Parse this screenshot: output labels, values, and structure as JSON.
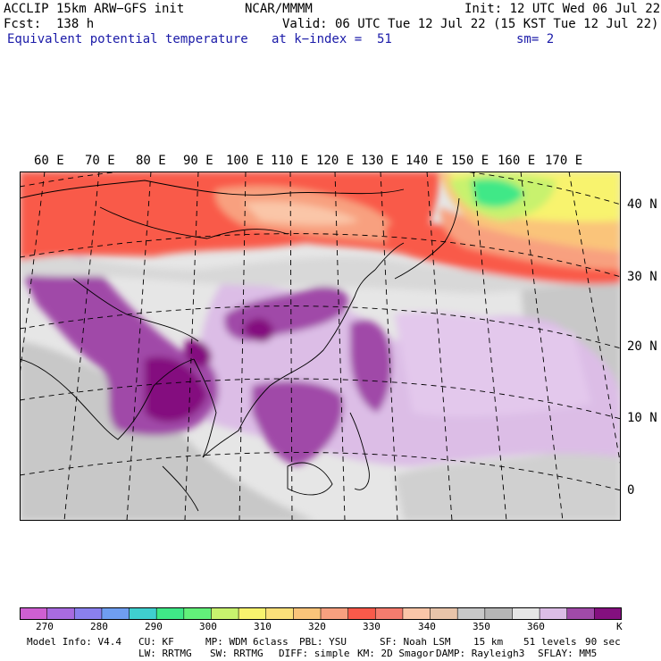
{
  "header": {
    "model": "ACCLIP 15km ARW−GFS init",
    "org": "NCAR/MMMM",
    "init": "Init: 12 UTC Wed 06 Jul 22",
    "fcst": "Fcst:  138 h",
    "valid": "Valid: 06 UTC Tue 12 Jul 22 (15 KST Tue 12 Jul 22)",
    "field": "Equivalent potential temperature",
    "level": "at k−index =  51",
    "smooth": "sm= 2"
  },
  "map": {
    "lon_labels": [
      "60 E",
      "70 E",
      "80 E",
      "90 E",
      "100 E",
      "110 E",
      "120 E",
      "130 E",
      "140 E",
      "150 E",
      "160 E",
      "170 E"
    ],
    "lat_labels": [
      "40 N",
      "30 N",
      "20 N",
      "10 N",
      "0"
    ],
    "field_colors": {
      "warm": "#f95a4a",
      "mid": "#f8a07f",
      "peach": "#fac6a8",
      "grey": "#c8c8c8",
      "light_grey": "#e6e6e6",
      "lavender": "#dcbde6",
      "purple": "#a04aa8",
      "deep_purple": "#84107f",
      "green": "#3fe887",
      "yellow_green": "#c8f26e",
      "yellow": "#f8f36e",
      "orange": "#fac47a"
    }
  },
  "colorbar": {
    "labels": [
      "270",
      "280",
      "290",
      "300",
      "310",
      "320",
      "330",
      "340",
      "350",
      "360"
    ],
    "unit": "K",
    "colors": [
      "#cf5fd2",
      "#a86be0",
      "#8a80ee",
      "#6f9ef0",
      "#3fcfcf",
      "#3fe887",
      "#62f07a",
      "#c8f26e",
      "#f8f36e",
      "#fbe07a",
      "#fac47a",
      "#f8a07f",
      "#f95a4a",
      "#f57c6e",
      "#fac6a8",
      "#e8c4aa",
      "#c8c8c8",
      "#b6b6b6",
      "#e6e6e6",
      "#dcbde6",
      "#a04aa8",
      "#84107f"
    ]
  },
  "footer": {
    "line1": [
      "Model Info: V4.4",
      "CU: KF",
      "MP: WDM 6class",
      "PBL: YSU",
      "SF: Noah LSM",
      "15 km",
      "51 levels",
      "90 sec"
    ],
    "line2": [
      "LW: RRTMG",
      "SW: RRTMG",
      "DIFF: simple",
      "KM: 2D Smagor",
      "DAMP: Rayleigh3",
      "SFLAY: MM5"
    ]
  }
}
